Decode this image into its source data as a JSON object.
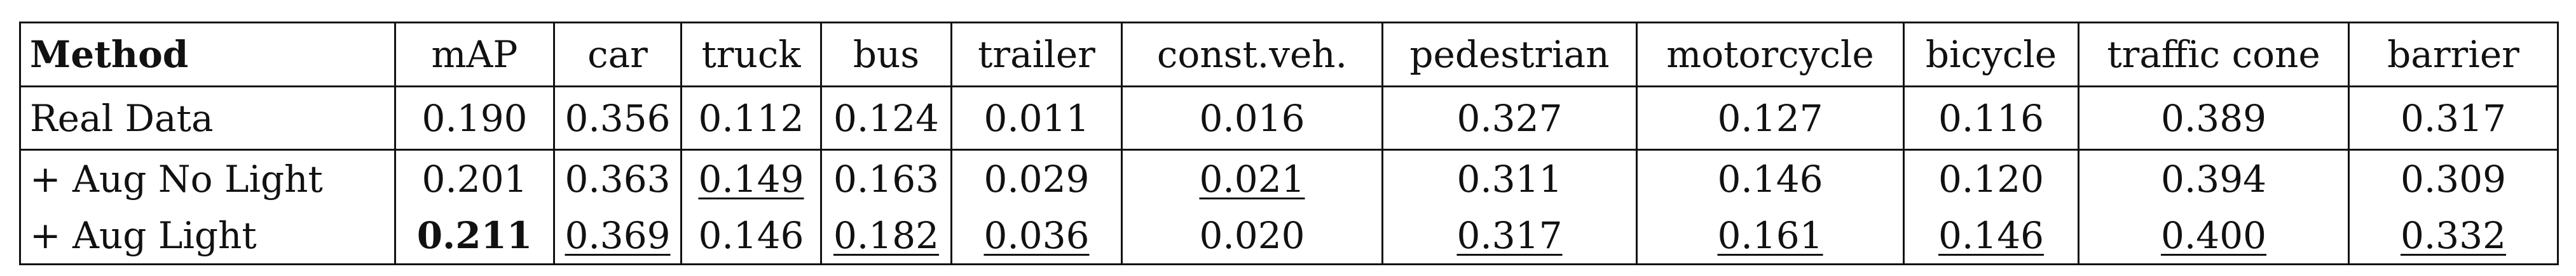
{
  "table": {
    "columns": [
      "Method",
      "mAP",
      "car",
      "truck",
      "bus",
      "trailer",
      "const.veh.",
      "pedestrian",
      "motorcycle",
      "bicycle",
      "traffic cone",
      "barrier"
    ],
    "rows": [
      {
        "method": "Real Data",
        "values": [
          "0.190",
          "0.356",
          "0.112",
          "0.124",
          "0.011",
          "0.016",
          "0.327",
          "0.127",
          "0.116",
          "0.389",
          "0.317"
        ]
      },
      {
        "method": "+ Aug No Light",
        "values": [
          "0.201",
          "0.363",
          "0.149",
          "0.163",
          "0.029",
          "0.021",
          "0.311",
          "0.146",
          "0.120",
          "0.394",
          "0.309"
        ]
      },
      {
        "method": "+ Aug Light",
        "values": [
          "0.211",
          "0.369",
          "0.146",
          "0.182",
          "0.036",
          "0.020",
          "0.317",
          "0.161",
          "0.146",
          "0.400",
          "0.332"
        ]
      }
    ],
    "bold_cells": [
      [
        2,
        0
      ]
    ],
    "underlined_cells": [
      [
        1,
        2
      ],
      [
        1,
        5
      ],
      [
        2,
        1
      ],
      [
        2,
        3
      ],
      [
        2,
        4
      ],
      [
        2,
        6
      ],
      [
        2,
        7
      ],
      [
        2,
        8
      ],
      [
        2,
        9
      ],
      [
        2,
        10
      ]
    ]
  }
}
